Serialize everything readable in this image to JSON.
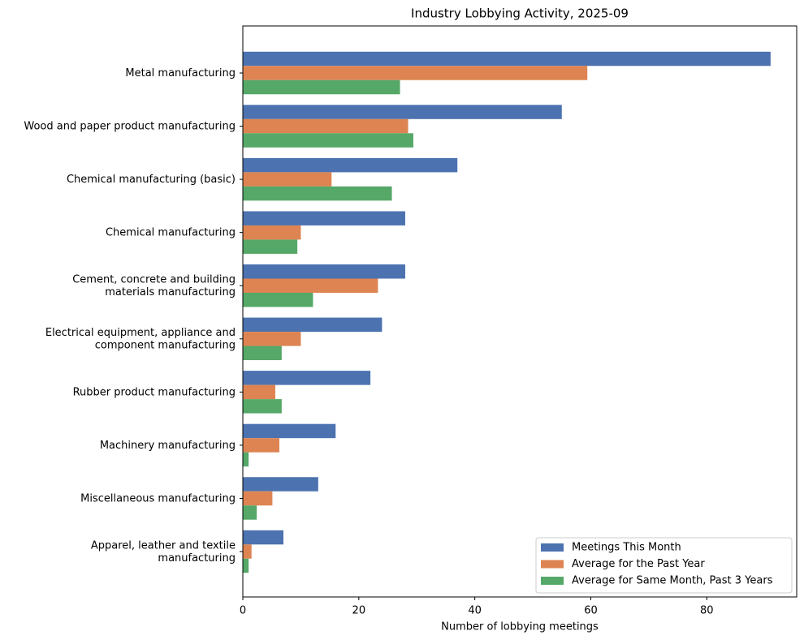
{
  "chart_data": {
    "type": "barh",
    "title": "Industry Lobbying Activity, 2025-09",
    "x_label": "Number of lobbying meetings",
    "categories": [
      "Metal manufacturing",
      "Wood and paper product manufacturing",
      "Chemical manufacturing (basic)",
      "Chemical manufacturing",
      "Cement, concrete and building\nmaterials manufacturing",
      "Electrical equipment, appliance and\ncomponent manufacturing",
      "Rubber product manufacturing",
      "Machinery manufacturing",
      "Miscellaneous manufacturing",
      "Apparel, leather and textile\nmanufacturing"
    ],
    "series": [
      {
        "name": "Meetings This Month",
        "color": "#4c72b0",
        "values": [
          91,
          55,
          37,
          28,
          28,
          24,
          22,
          16,
          13,
          7
        ]
      },
      {
        "name": "Average for the Past Year",
        "color": "#dd8452",
        "values": [
          59.4,
          28.5,
          15.3,
          10.0,
          23.3,
          10.0,
          5.6,
          6.3,
          5.1,
          1.5
        ]
      },
      {
        "name": "Average for Same Month, Past 3 Years",
        "color": "#55a868",
        "values": [
          27.1,
          29.4,
          25.7,
          9.4,
          12.1,
          6.7,
          6.7,
          1,
          2.4,
          1
        ]
      }
    ],
    "xlim": [
      0,
      95.5
    ],
    "xticks": [
      0,
      20,
      40,
      60,
      80
    ],
    "grid": false,
    "legend": "lower right"
  }
}
